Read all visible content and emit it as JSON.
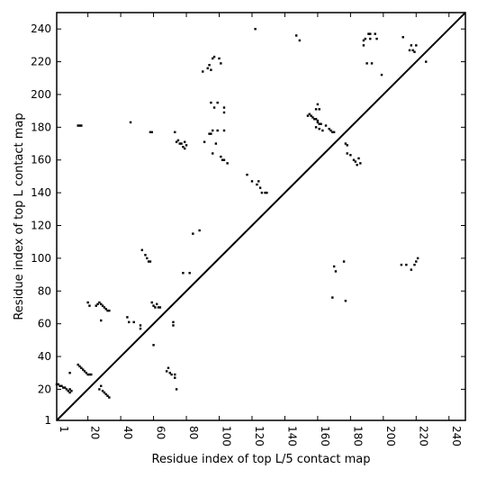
{
  "chart_data": {
    "type": "scatter",
    "title": "",
    "xlabel": "Residue index of top L/5 contact map",
    "ylabel": "Residue index of top L contact map",
    "xlim": [
      1,
      250
    ],
    "ylim": [
      1,
      250
    ],
    "xticks": [
      1,
      20,
      40,
      60,
      80,
      100,
      120,
      140,
      160,
      180,
      200,
      220,
      240
    ],
    "yticks": [
      1,
      20,
      40,
      60,
      80,
      100,
      120,
      140,
      160,
      180,
      200,
      220,
      240
    ],
    "xtick_rotation": -90,
    "diagonal": {
      "from": [
        1,
        1
      ],
      "to": [
        250,
        250
      ]
    },
    "grid": false,
    "legend": "none",
    "marker_color": "#000000",
    "series": [
      {
        "region": "below-diagonal",
        "points": [
          [
            1,
            23
          ],
          [
            2,
            23
          ],
          [
            3,
            22
          ],
          [
            4,
            22
          ],
          [
            5,
            21
          ],
          [
            6,
            21
          ],
          [
            7,
            20
          ],
          [
            8,
            19
          ],
          [
            9,
            18
          ],
          [
            9,
            20
          ],
          [
            10,
            19
          ],
          [
            9,
            30
          ],
          [
            14,
            35
          ],
          [
            15,
            34
          ],
          [
            16,
            33
          ],
          [
            17,
            32
          ],
          [
            18,
            31
          ],
          [
            19,
            30
          ],
          [
            20,
            29
          ],
          [
            21,
            29
          ],
          [
            22,
            29
          ],
          [
            20,
            73
          ],
          [
            21,
            71
          ],
          [
            25,
            71
          ],
          [
            26,
            72
          ],
          [
            27,
            73
          ],
          [
            28,
            72
          ],
          [
            29,
            71
          ],
          [
            30,
            70
          ],
          [
            31,
            69
          ],
          [
            32,
            68
          ],
          [
            33,
            68
          ],
          [
            28,
            62
          ],
          [
            27,
            20
          ],
          [
            28,
            22
          ],
          [
            29,
            19
          ],
          [
            30,
            18
          ],
          [
            31,
            17
          ],
          [
            32,
            16
          ],
          [
            33,
            15
          ],
          [
            44,
            64
          ],
          [
            45,
            61
          ],
          [
            48,
            61
          ],
          [
            52,
            59
          ],
          [
            52,
            57
          ],
          [
            53,
            105
          ],
          [
            55,
            102
          ],
          [
            56,
            100
          ],
          [
            57,
            98
          ],
          [
            58,
            98
          ],
          [
            59,
            73
          ],
          [
            60,
            71
          ],
          [
            61,
            70
          ],
          [
            62,
            72
          ],
          [
            63,
            70
          ],
          [
            64,
            70
          ],
          [
            60,
            47
          ],
          [
            68,
            31
          ],
          [
            69,
            33
          ],
          [
            70,
            30
          ],
          [
            71,
            29
          ],
          [
            72,
            61
          ],
          [
            72,
            59
          ],
          [
            73,
            27
          ],
          [
            73,
            29
          ],
          [
            74,
            20
          ],
          [
            78,
            91
          ],
          [
            82,
            91
          ],
          [
            176,
            98
          ],
          [
            177,
            74
          ],
          [
            169,
            76
          ],
          [
            171,
            92
          ],
          [
            170,
            95
          ],
          [
            211,
            96
          ],
          [
            214,
            96
          ],
          [
            217,
            93
          ],
          [
            219,
            96
          ],
          [
            220,
            98
          ],
          [
            221,
            100
          ]
        ]
      },
      {
        "region": "above-diagonal",
        "points": [
          [
            14,
            181
          ],
          [
            15,
            181
          ],
          [
            16,
            181
          ],
          [
            46,
            183
          ],
          [
            58,
            177
          ],
          [
            59,
            177
          ],
          [
            73,
            177
          ],
          [
            74,
            171
          ],
          [
            75,
            172
          ],
          [
            76,
            170
          ],
          [
            77,
            170
          ],
          [
            78,
            168
          ],
          [
            79,
            167
          ],
          [
            79,
            171
          ],
          [
            80,
            169
          ],
          [
            84,
            115
          ],
          [
            88,
            117
          ],
          [
            90,
            214
          ],
          [
            91,
            171
          ],
          [
            93,
            216
          ],
          [
            94,
            218
          ],
          [
            95,
            215
          ],
          [
            96,
            222
          ],
          [
            97,
            223
          ],
          [
            100,
            222
          ],
          [
            101,
            219
          ],
          [
            94,
            176
          ],
          [
            95,
            176
          ],
          [
            96,
            178
          ],
          [
            99,
            178
          ],
          [
            103,
            178
          ],
          [
            96,
            164
          ],
          [
            98,
            170
          ],
          [
            101,
            162
          ],
          [
            102,
            160
          ],
          [
            103,
            160
          ],
          [
            105,
            158
          ],
          [
            95,
            195
          ],
          [
            97,
            192
          ],
          [
            99,
            195
          ],
          [
            103,
            192
          ],
          [
            103,
            189
          ],
          [
            117,
            151
          ],
          [
            120,
            147
          ],
          [
            123,
            145
          ],
          [
            124,
            147
          ],
          [
            125,
            143
          ],
          [
            126,
            140
          ],
          [
            128,
            140
          ],
          [
            129,
            140
          ],
          [
            122,
            240
          ],
          [
            147,
            236
          ],
          [
            149,
            233
          ],
          [
            154,
            187
          ],
          [
            155,
            188
          ],
          [
            156,
            187
          ],
          [
            157,
            186
          ],
          [
            158,
            185
          ],
          [
            159,
            185
          ],
          [
            160,
            184
          ],
          [
            160,
            183
          ],
          [
            161,
            182
          ],
          [
            162,
            182
          ],
          [
            159,
            191
          ],
          [
            160,
            194
          ],
          [
            161,
            191
          ],
          [
            159,
            180
          ],
          [
            161,
            179
          ],
          [
            163,
            178
          ],
          [
            167,
            179
          ],
          [
            168,
            178
          ],
          [
            169,
            177
          ],
          [
            170,
            177
          ],
          [
            165,
            181
          ],
          [
            177,
            170
          ],
          [
            178,
            169
          ],
          [
            178,
            164
          ],
          [
            180,
            163
          ],
          [
            182,
            160
          ],
          [
            183,
            159
          ],
          [
            184,
            157
          ],
          [
            185,
            161
          ],
          [
            186,
            158
          ],
          [
            188,
            233
          ],
          [
            188,
            230
          ],
          [
            189,
            234
          ],
          [
            190,
            219
          ],
          [
            191,
            237
          ],
          [
            192,
            237
          ],
          [
            192,
            234
          ],
          [
            193,
            219
          ],
          [
            195,
            237
          ],
          [
            196,
            234
          ],
          [
            199,
            212
          ],
          [
            212,
            235
          ],
          [
            216,
            227
          ],
          [
            217,
            230
          ],
          [
            218,
            227
          ],
          [
            219,
            226
          ],
          [
            220,
            230
          ],
          [
            226,
            220
          ]
        ]
      }
    ]
  }
}
